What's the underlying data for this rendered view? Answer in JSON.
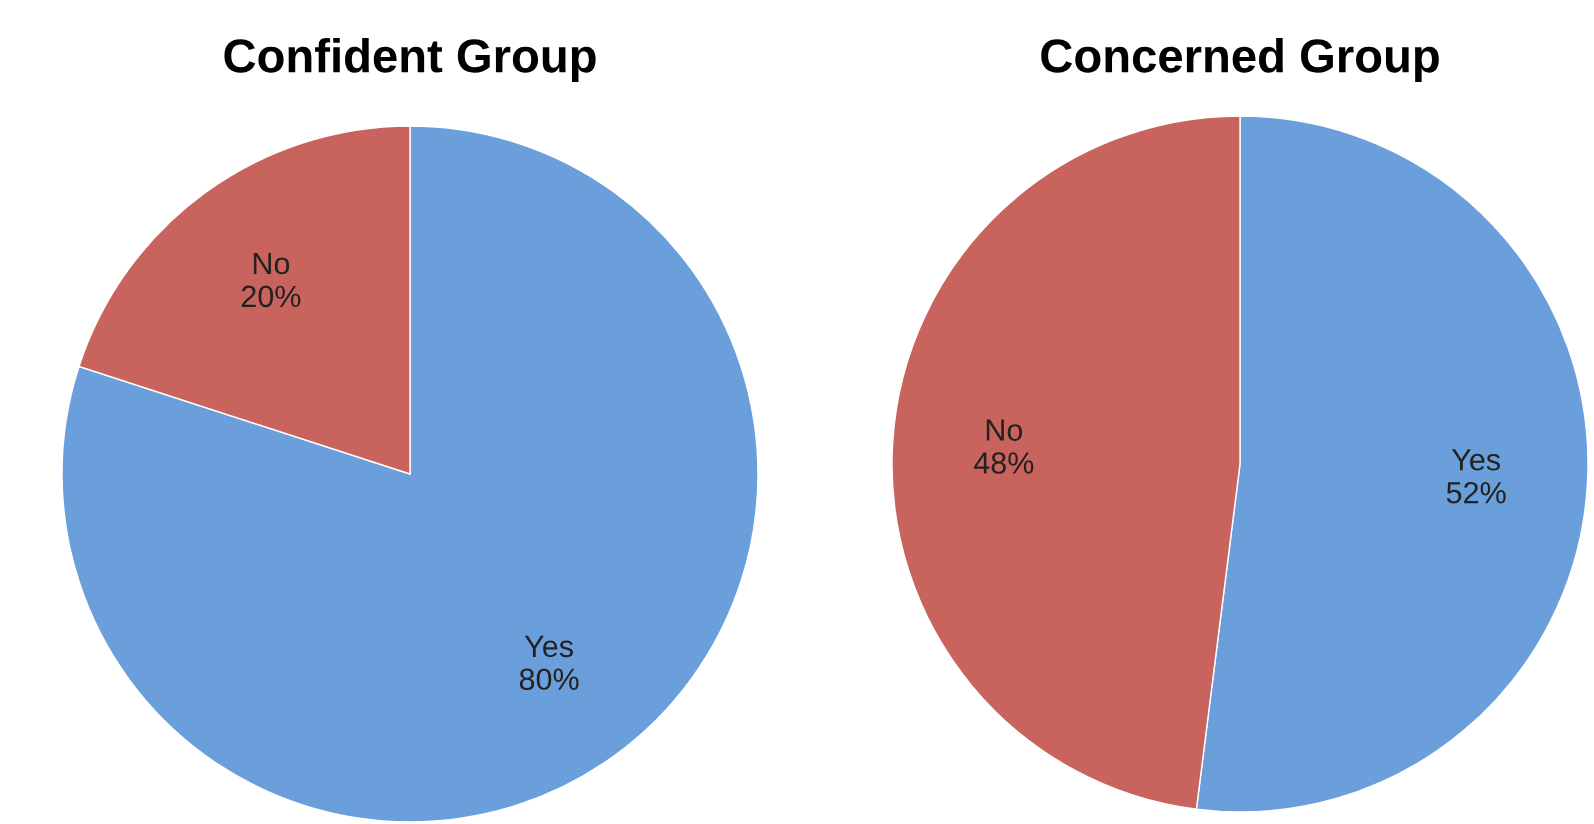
{
  "chart_data": [
    {
      "type": "pie",
      "title": "Confident Group",
      "categories": [
        "Yes",
        "No"
      ],
      "values": [
        80,
        20
      ],
      "colors": [
        "#6a9fdc",
        "#c9635d"
      ],
      "value_labels": [
        "80%",
        "20%"
      ]
    },
    {
      "type": "pie",
      "title": "Concerned Group",
      "categories": [
        "Yes",
        "No"
      ],
      "values": [
        52,
        48
      ],
      "colors": [
        "#6a9fdc",
        "#c9635d"
      ],
      "value_labels": [
        "52%",
        "48%"
      ]
    }
  ]
}
